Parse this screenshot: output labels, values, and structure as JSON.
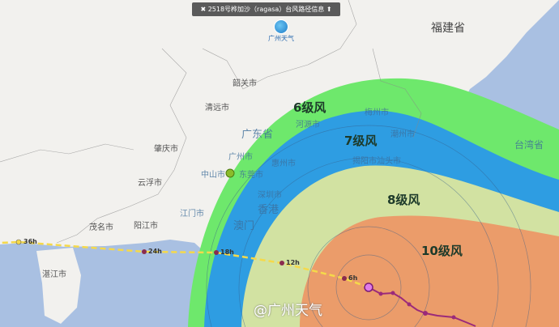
{
  "banner": {
    "close_icon": "close-icon",
    "title": "2518号桦加沙（ragasa）台风路径信息",
    "pin_icon": "pin-icon"
  },
  "logo": {
    "text": "广州天气"
  },
  "watermark": "@广州天气",
  "places": {
    "fujian": "福建省",
    "shaoguan": "韶关市",
    "qingyuan": "清远市",
    "zhaoqing": "肇庆市",
    "yunfu": "云浮市",
    "yangjiang": "阳江市",
    "maoming": "茂名市",
    "zhanjiang": "湛江市",
    "guangdong": "广东省",
    "guangzhou": "广州市",
    "zhongshan": "中山市",
    "heyuan": "河源市",
    "meizhou": "梅州市",
    "chaozhou": "潮州市",
    "huizhou": "惠州市",
    "dongguan": "东莞市",
    "shenzhen": "深圳市",
    "jiangmen": "江门市",
    "macau": "澳门",
    "hongkong": "香港",
    "shantou": "揭阳市汕头市",
    "taiwan": "台湾省"
  },
  "wind_zones": [
    {
      "label": "6级风",
      "color": "#6ee86c"
    },
    {
      "label": "7级风",
      "color": "#2e9de2"
    },
    {
      "label": "8级风",
      "color": "#d2e2a2"
    },
    {
      "label": "10级风",
      "color": "#eb9c6a"
    }
  ],
  "forecast_points": [
    "6h",
    "12h",
    "18h",
    "24h",
    "36h"
  ],
  "colors": {
    "sea": "#a9c0e2",
    "land": "#f2f1ee",
    "forecast_track": "#f5d94a",
    "past_track": "#9b2a7a"
  }
}
